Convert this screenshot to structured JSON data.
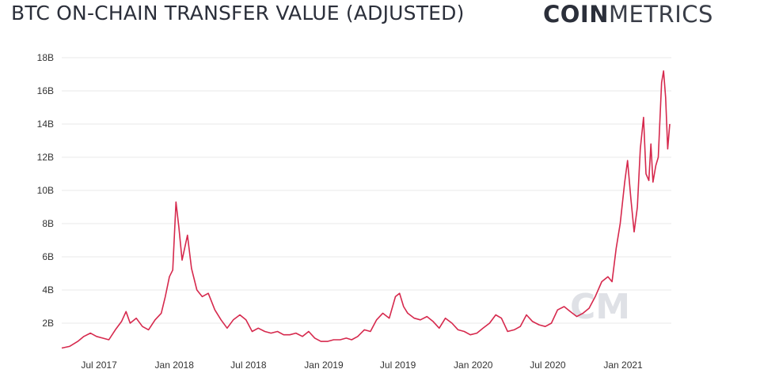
{
  "header": {
    "title": "BTC ON-CHAIN TRANSFER VALUE (ADJUSTED)",
    "logo_bold": "COIN",
    "logo_light": "METRICS"
  },
  "watermark": "CM",
  "colors": {
    "series": "#d6294d",
    "grid": "#e8e8e8",
    "text": "#2b2f3a"
  },
  "chart_data": {
    "type": "line",
    "title": "BTC ON-CHAIN TRANSFER VALUE (ADJUSTED)",
    "xlabel": "",
    "ylabel": "",
    "ylim": [
      0,
      18
    ],
    "y_unit": "B",
    "y_ticks": [
      "2B",
      "4B",
      "6B",
      "8B",
      "10B",
      "12B",
      "14B",
      "16B",
      "18B"
    ],
    "y_tick_values": [
      2,
      4,
      6,
      8,
      10,
      12,
      14,
      16,
      18
    ],
    "x_ticks": [
      "Jul 2017",
      "Jan 2018",
      "Jul 2018",
      "Jan 2019",
      "Jul 2019",
      "Jan 2020",
      "Jul 2020",
      "Jan 2021"
    ],
    "x_tick_dates": [
      "2017-07-01",
      "2018-01-01",
      "2018-07-01",
      "2019-01-01",
      "2019-07-01",
      "2020-01-01",
      "2020-07-01",
      "2021-01-01"
    ],
    "grid": true,
    "series": [
      {
        "values": [
          [
            "2017-04-01",
            0.5
          ],
          [
            "2017-04-20",
            0.6
          ],
          [
            "2017-05-10",
            0.9
          ],
          [
            "2017-05-25",
            1.2
          ],
          [
            "2017-06-10",
            1.4
          ],
          [
            "2017-06-25",
            1.2
          ],
          [
            "2017-07-10",
            1.1
          ],
          [
            "2017-07-25",
            1.0
          ],
          [
            "2017-08-10",
            1.6
          ],
          [
            "2017-08-25",
            2.1
          ],
          [
            "2017-09-05",
            2.7
          ],
          [
            "2017-09-15",
            2.0
          ],
          [
            "2017-09-30",
            2.3
          ],
          [
            "2017-10-15",
            1.8
          ],
          [
            "2017-10-30",
            1.6
          ],
          [
            "2017-11-15",
            2.2
          ],
          [
            "2017-11-30",
            2.6
          ],
          [
            "2017-12-10",
            3.6
          ],
          [
            "2017-12-20",
            4.8
          ],
          [
            "2017-12-28",
            5.2
          ],
          [
            "2018-01-05",
            9.3
          ],
          [
            "2018-01-12",
            7.8
          ],
          [
            "2018-01-20",
            5.8
          ],
          [
            "2018-02-02",
            7.3
          ],
          [
            "2018-02-12",
            5.3
          ],
          [
            "2018-02-25",
            4.0
          ],
          [
            "2018-03-10",
            3.6
          ],
          [
            "2018-03-25",
            3.8
          ],
          [
            "2018-04-10",
            2.8
          ],
          [
            "2018-04-25",
            2.2
          ],
          [
            "2018-05-10",
            1.7
          ],
          [
            "2018-05-25",
            2.2
          ],
          [
            "2018-06-10",
            2.5
          ],
          [
            "2018-06-25",
            2.2
          ],
          [
            "2018-07-10",
            1.5
          ],
          [
            "2018-07-25",
            1.7
          ],
          [
            "2018-08-10",
            1.5
          ],
          [
            "2018-08-25",
            1.4
          ],
          [
            "2018-09-10",
            1.5
          ],
          [
            "2018-09-25",
            1.3
          ],
          [
            "2018-10-10",
            1.3
          ],
          [
            "2018-10-25",
            1.4
          ],
          [
            "2018-11-10",
            1.2
          ],
          [
            "2018-11-25",
            1.5
          ],
          [
            "2018-12-10",
            1.1
          ],
          [
            "2018-12-25",
            0.9
          ],
          [
            "2019-01-10",
            0.9
          ],
          [
            "2019-01-25",
            1.0
          ],
          [
            "2019-02-10",
            1.0
          ],
          [
            "2019-02-25",
            1.1
          ],
          [
            "2019-03-10",
            1.0
          ],
          [
            "2019-03-25",
            1.2
          ],
          [
            "2019-04-10",
            1.6
          ],
          [
            "2019-04-25",
            1.5
          ],
          [
            "2019-05-10",
            2.2
          ],
          [
            "2019-05-25",
            2.6
          ],
          [
            "2019-06-10",
            2.3
          ],
          [
            "2019-06-25",
            3.6
          ],
          [
            "2019-07-05",
            3.8
          ],
          [
            "2019-07-15",
            3.0
          ],
          [
            "2019-07-25",
            2.6
          ],
          [
            "2019-08-10",
            2.3
          ],
          [
            "2019-08-25",
            2.2
          ],
          [
            "2019-09-10",
            2.4
          ],
          [
            "2019-09-25",
            2.1
          ],
          [
            "2019-10-10",
            1.7
          ],
          [
            "2019-10-25",
            2.3
          ],
          [
            "2019-11-10",
            2.0
          ],
          [
            "2019-11-25",
            1.6
          ],
          [
            "2019-12-10",
            1.5
          ],
          [
            "2019-12-25",
            1.3
          ],
          [
            "2020-01-10",
            1.4
          ],
          [
            "2020-01-25",
            1.7
          ],
          [
            "2020-02-10",
            2.0
          ],
          [
            "2020-02-25",
            2.5
          ],
          [
            "2020-03-10",
            2.3
          ],
          [
            "2020-03-25",
            1.5
          ],
          [
            "2020-04-10",
            1.6
          ],
          [
            "2020-04-25",
            1.8
          ],
          [
            "2020-05-10",
            2.5
          ],
          [
            "2020-05-25",
            2.1
          ],
          [
            "2020-06-10",
            1.9
          ],
          [
            "2020-06-25",
            1.8
          ],
          [
            "2020-07-10",
            2.0
          ],
          [
            "2020-07-25",
            2.8
          ],
          [
            "2020-08-10",
            3.0
          ],
          [
            "2020-08-25",
            2.7
          ],
          [
            "2020-09-10",
            2.4
          ],
          [
            "2020-09-25",
            2.6
          ],
          [
            "2020-10-10",
            2.9
          ],
          [
            "2020-10-25",
            3.6
          ],
          [
            "2020-11-10",
            4.5
          ],
          [
            "2020-11-25",
            4.8
          ],
          [
            "2020-12-05",
            4.5
          ],
          [
            "2020-12-15",
            6.5
          ],
          [
            "2020-12-25",
            8.0
          ],
          [
            "2021-01-05",
            10.5
          ],
          [
            "2021-01-12",
            11.8
          ],
          [
            "2021-01-20",
            9.5
          ],
          [
            "2021-01-28",
            7.5
          ],
          [
            "2021-02-05",
            9.0
          ],
          [
            "2021-02-12",
            12.5
          ],
          [
            "2021-02-20",
            14.4
          ],
          [
            "2021-02-26",
            11.0
          ],
          [
            "2021-03-05",
            10.6
          ],
          [
            "2021-03-10",
            12.8
          ],
          [
            "2021-03-15",
            10.5
          ],
          [
            "2021-03-22",
            11.5
          ],
          [
            "2021-03-28",
            12.0
          ],
          [
            "2021-04-05",
            16.5
          ],
          [
            "2021-04-10",
            17.2
          ],
          [
            "2021-04-15",
            15.6
          ],
          [
            "2021-04-20",
            12.5
          ],
          [
            "2021-04-25",
            14.0
          ]
        ]
      }
    ]
  }
}
